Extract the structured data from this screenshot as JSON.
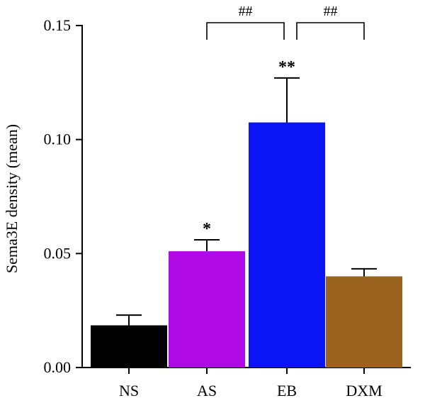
{
  "chart_data": {
    "type": "bar",
    "title": "",
    "xlabel": "",
    "ylabel": "Sema3E density (mean)",
    "ylim": [
      0,
      0.15
    ],
    "yticks": [
      0.0,
      0.05,
      0.1,
      0.15
    ],
    "ytick_labels": [
      "0.00",
      "0.05",
      "0.10",
      "0.15"
    ],
    "categories": [
      "NS",
      "AS",
      "EB",
      "DXM"
    ],
    "values": [
      0.0185,
      0.051,
      0.1075,
      0.04
    ],
    "errors": [
      0.0045,
      0.005,
      0.0195,
      0.0033
    ],
    "colors": [
      "#000000",
      "#b00be6",
      "#0a14f5",
      "#9a6420"
    ],
    "significance": [
      "",
      "*",
      "**",
      ""
    ],
    "comparisons": [
      {
        "from": "AS",
        "to": "EB",
        "label": "##"
      },
      {
        "from": "EB",
        "to": "DXM",
        "label": "##"
      }
    ],
    "grid": false,
    "legend": "none"
  }
}
